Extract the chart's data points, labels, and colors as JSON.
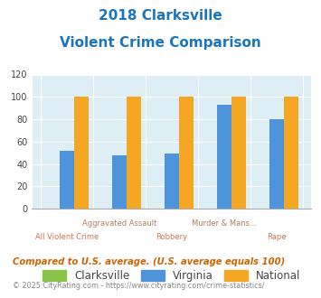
{
  "title_line1": "2018 Clarksville",
  "title_line2": "Violent Crime Comparison",
  "categories": [
    "All Violent Crime",
    "Aggravated Assault",
    "Robbery",
    "Murder & Mans...",
    "Rape"
  ],
  "cat_labels_top": [
    "",
    "Aggravated Assault",
    "",
    "Murder & Mans...",
    ""
  ],
  "cat_labels_bot": [
    "All Violent Crime",
    "",
    "Robbery",
    "",
    "Rape"
  ],
  "clarksville_values": [
    0,
    0,
    0,
    0,
    0
  ],
  "virginia_values": [
    52,
    48,
    49,
    93,
    80
  ],
  "national_values": [
    100,
    100,
    100,
    100,
    100
  ],
  "clarksville_color": "#8bc34a",
  "virginia_color": "#4d94db",
  "national_color": "#f5a623",
  "bg_color": "#ddeef5",
  "ylim": [
    0,
    120
  ],
  "yticks": [
    0,
    20,
    40,
    60,
    80,
    100,
    120
  ],
  "title_color": "#1a75bc",
  "top_label_color": "#b08060",
  "bot_label_color": "#cc7755",
  "footer_text": "Compared to U.S. average. (U.S. average equals 100)",
  "footer_color": "#cc6600",
  "copyright_text": "© 2025 CityRating.com - https://www.cityrating.com/crime-statistics/",
  "copyright_color": "#888888",
  "legend_labels": [
    "Clarksville",
    "Virginia",
    "National"
  ],
  "bar_width": 0.28
}
